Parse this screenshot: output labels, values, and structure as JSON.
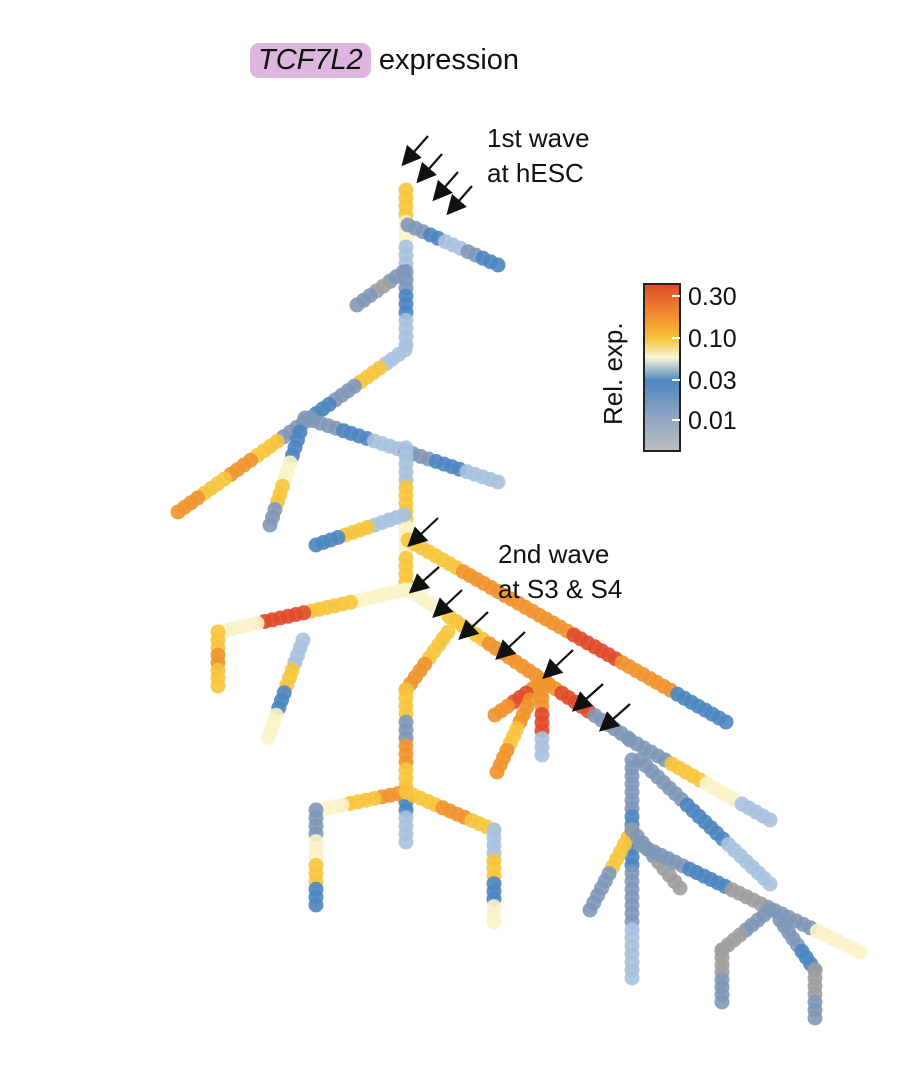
{
  "title": {
    "gene": "TCF7L2",
    "suffix": " expression",
    "highlight_color": "#dcb6dd"
  },
  "annotations": [
    {
      "id": "wave1",
      "lines": [
        "1st wave",
        "at hESC"
      ]
    },
    {
      "id": "wave2",
      "lines": [
        "2nd wave",
        "at S3 & S4"
      ]
    }
  ],
  "legend": {
    "title": "Rel. exp.",
    "ticks": [
      "0.30",
      "0.10",
      "0.03",
      "0.01"
    ],
    "scale": "log",
    "colors": [
      "#e04a2a",
      "#f08a2e",
      "#f6c53c",
      "#faf6d9",
      "#4d86c0",
      "#8fa6c4",
      "#bdbdbd"
    ]
  },
  "palette": {
    "grey": "#9e9e9e",
    "slate": "#7f98b8",
    "blue": "#4d86c0",
    "lightblue": "#a9c2e0",
    "cream": "#faf3c9",
    "yellow": "#f6c53c",
    "orange": "#f0932e",
    "red": "#e04a2a"
  }
}
